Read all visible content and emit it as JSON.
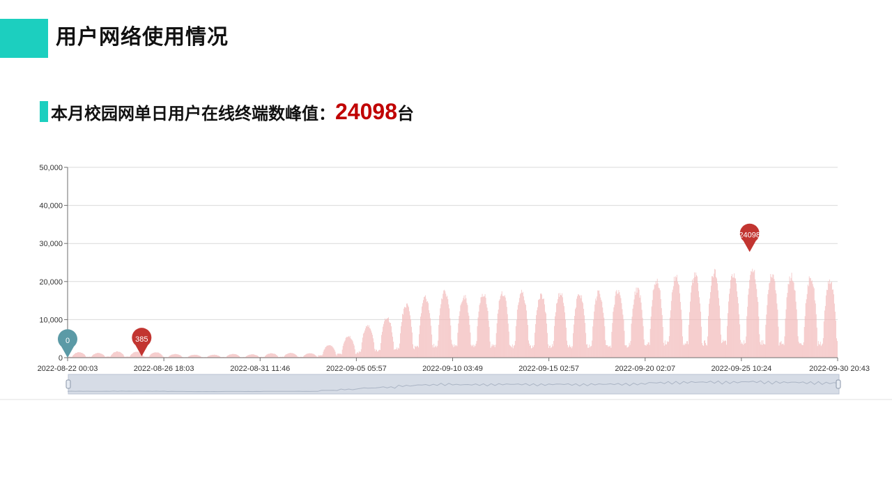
{
  "header": {
    "title": "用户网络使用情况"
  },
  "summary": {
    "prefix": "本月校园网单日用户在线终端数峰值：",
    "peak": "24098",
    "unit": "台"
  },
  "colors": {
    "accent": "#1ccfbf",
    "peak_text": "#c00000",
    "bar": "#f2b9b9",
    "marker_max": "#c23531",
    "marker_min": "#5b9aa6"
  },
  "chart_data": {
    "type": "bar",
    "ylim": [
      0,
      50000
    ],
    "y_ticks": [
      "0",
      "10,000",
      "20,000",
      "30,000",
      "40,000",
      "50,000"
    ],
    "x_ticks": [
      "2022-08-22 00:03",
      "2022-08-26 18:03",
      "2022-08-31 11:46",
      "2022-09-05 05:57",
      "2022-09-10 03:49",
      "2022-09-15 02:57",
      "2022-09-20 02:07",
      "2022-09-25 10:24",
      "2022-09-30 20:43"
    ],
    "x_range": [
      "2022-08-22",
      "2022-09-30"
    ],
    "grid": true,
    "daily_peaks": [
      {
        "date": "2022-08-22",
        "value": 1500
      },
      {
        "date": "2022-08-23",
        "value": 1300
      },
      {
        "date": "2022-08-24",
        "value": 1700
      },
      {
        "date": "2022-08-25",
        "value": 1600
      },
      {
        "date": "2022-08-26",
        "value": 1500
      },
      {
        "date": "2022-08-27",
        "value": 1000
      },
      {
        "date": "2022-08-28",
        "value": 800
      },
      {
        "date": "2022-08-29",
        "value": 800
      },
      {
        "date": "2022-08-30",
        "value": 1000
      },
      {
        "date": "2022-08-31",
        "value": 900
      },
      {
        "date": "2022-09-01",
        "value": 1200
      },
      {
        "date": "2022-09-02",
        "value": 1300
      },
      {
        "date": "2022-09-03",
        "value": 1200
      },
      {
        "date": "2022-09-04",
        "value": 3500
      },
      {
        "date": "2022-09-05",
        "value": 6000
      },
      {
        "date": "2022-09-06",
        "value": 9000
      },
      {
        "date": "2022-09-07",
        "value": 11000
      },
      {
        "date": "2022-09-08",
        "value": 14500
      },
      {
        "date": "2022-09-09",
        "value": 16500
      },
      {
        "date": "2022-09-10",
        "value": 18500
      },
      {
        "date": "2022-09-11",
        "value": 17000
      },
      {
        "date": "2022-09-12",
        "value": 17500
      },
      {
        "date": "2022-09-13",
        "value": 18000
      },
      {
        "date": "2022-09-14",
        "value": 18000
      },
      {
        "date": "2022-09-15",
        "value": 17500
      },
      {
        "date": "2022-09-16",
        "value": 18000
      },
      {
        "date": "2022-09-17",
        "value": 17500
      },
      {
        "date": "2022-09-18",
        "value": 18000
      },
      {
        "date": "2022-09-19",
        "value": 18500
      },
      {
        "date": "2022-09-20",
        "value": 19000
      },
      {
        "date": "2022-09-21",
        "value": 21500
      },
      {
        "date": "2022-09-22",
        "value": 22500
      },
      {
        "date": "2022-09-23",
        "value": 23000
      },
      {
        "date": "2022-09-24",
        "value": 23500
      },
      {
        "date": "2022-09-25",
        "value": 23000
      },
      {
        "date": "2022-09-26",
        "value": 24098
      },
      {
        "date": "2022-09-27",
        "value": 23000
      },
      {
        "date": "2022-09-28",
        "value": 22500
      },
      {
        "date": "2022-09-29",
        "value": 22000
      },
      {
        "date": "2022-09-30",
        "value": 21000
      }
    ],
    "markers": [
      {
        "type": "min",
        "label": "0",
        "date": "2022-08-22",
        "value": 0
      },
      {
        "type": "max",
        "label": "385",
        "date": "2022-08-26",
        "value": 385
      },
      {
        "type": "max",
        "label": "24098",
        "date": "2022-09-26",
        "value": 24098
      }
    ]
  }
}
